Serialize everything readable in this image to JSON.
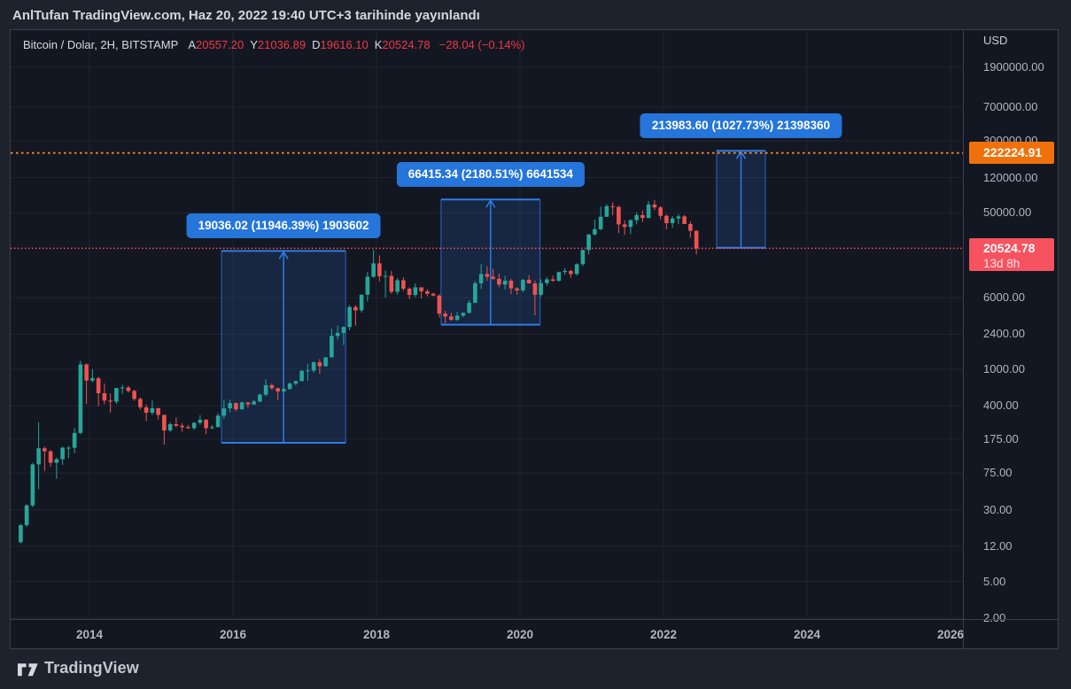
{
  "attribution": {
    "text": "AnlTufan TradingView.com, Haz 20, 2022 19:40 UTC+3 tarihinde yayınlandı"
  },
  "legend": {
    "symbol_title": "Bitcoin / Dolar, 2H, BITSTAMP",
    "ohlc": [
      {
        "label": "A",
        "value": "20557.20"
      },
      {
        "label": "Y",
        "value": "21036.89"
      },
      {
        "label": "D",
        "value": "19616.10"
      },
      {
        "label": "K",
        "value": "20524.78"
      }
    ],
    "change": "−28.04 (−0.14%)"
  },
  "price_axis": {
    "unit": "USD",
    "ticks": [
      "1900000.00",
      "700000.00",
      "300000.00",
      "120000.00",
      "50000.00",
      "6000.00",
      "2400.00",
      "1000.00",
      "400.00",
      "175.00",
      "75.00",
      "30.00",
      "12.00",
      "5.00",
      "2.00"
    ],
    "tick_values": [
      1900000,
      700000,
      300000,
      120000,
      50000,
      6000,
      2400,
      1000,
      400,
      175,
      75,
      30,
      12,
      5,
      2
    ],
    "badges": [
      {
        "text": "222224.91",
        "value": 222224.91,
        "color": "#f0710c"
      },
      {
        "text": "20524.78",
        "sub": "13d 8h",
        "value": 20524.78,
        "color": "#f7525f"
      }
    ]
  },
  "time_axis": {
    "ticks": [
      2014,
      2016,
      2018,
      2020,
      2022,
      2024,
      2026
    ]
  },
  "footer": {
    "logo_text": "TradingView"
  },
  "chart_data": {
    "type": "candlestick",
    "symbol": "Bitcoin / Dolar",
    "exchange": "BITSTAMP",
    "timeframe": "2H",
    "scale": "log",
    "ylabel": "USD",
    "x_range_years": [
      2013.0,
      2026.5
    ],
    "y_ticks": [
      1900000,
      700000,
      300000,
      120000,
      50000,
      6000,
      2400,
      1000,
      400,
      175,
      75,
      30,
      12,
      5,
      2
    ],
    "colors": {
      "up": "#26a69a",
      "down": "#ef5350",
      "accent_blue": "#2e7ce6",
      "box_fill": "rgba(46,110,212,0.18)",
      "grid": "#1f2431",
      "line_red": "#f7525f",
      "line_orange": "#f7821b"
    },
    "start_year": 2013,
    "interval_months": 1,
    "candles": [
      [
        13.3,
        21,
        13,
        20.4
      ],
      [
        20.4,
        34.5,
        19.5,
        33.4
      ],
      [
        33.4,
        97,
        32,
        93
      ],
      [
        93,
        266,
        50,
        139
      ],
      [
        139,
        145,
        79,
        129
      ],
      [
        129,
        133,
        88,
        97
      ],
      [
        97,
        110,
        65,
        106
      ],
      [
        106,
        145,
        92,
        141
      ],
      [
        141,
        147,
        109,
        141
      ],
      [
        141,
        232,
        123,
        204
      ],
      [
        204,
        1240,
        198,
        1130
      ],
      [
        1130,
        1155,
        420,
        754
      ],
      [
        754,
        1000,
        720,
        800
      ],
      [
        800,
        830,
        400,
        550
      ],
      [
        550,
        700,
        420,
        458
      ],
      [
        458,
        545,
        340,
        446
      ],
      [
        446,
        630,
        420,
        627
      ],
      [
        627,
        680,
        540,
        635
      ],
      [
        635,
        660,
        560,
        583
      ],
      [
        583,
        600,
        455,
        477
      ],
      [
        477,
        495,
        365,
        387
      ],
      [
        387,
        415,
        275,
        338
      ],
      [
        338,
        460,
        320,
        378
      ],
      [
        378,
        384,
        285,
        320
      ],
      [
        320,
        322,
        152,
        217
      ],
      [
        217,
        265,
        210,
        254
      ],
      [
        254,
        300,
        236,
        244
      ],
      [
        244,
        260,
        210,
        236
      ],
      [
        236,
        248,
        225,
        230
      ],
      [
        230,
        268,
        220,
        263
      ],
      [
        263,
        318,
        250,
        284
      ],
      [
        284,
        288,
        198,
        230
      ],
      [
        230,
        248,
        223,
        236
      ],
      [
        236,
        334,
        235,
        314
      ],
      [
        314,
        465,
        290,
        377
      ],
      [
        377,
        470,
        340,
        430
      ],
      [
        430,
        436,
        350,
        368
      ],
      [
        368,
        448,
        365,
        437
      ],
      [
        437,
        440,
        383,
        416
      ],
      [
        416,
        470,
        410,
        448
      ],
      [
        448,
        545,
        438,
        531
      ],
      [
        531,
        780,
        510,
        673
      ],
      [
        673,
        705,
        600,
        624
      ],
      [
        624,
        630,
        465,
        575
      ],
      [
        575,
        628,
        565,
        610
      ],
      [
        610,
        720,
        600,
        700
      ],
      [
        700,
        755,
        670,
        745
      ],
      [
        745,
        980,
        740,
        963
      ],
      [
        963,
        1150,
        750,
        970
      ],
      [
        970,
        1220,
        920,
        1190
      ],
      [
        1190,
        1290,
        890,
        1080
      ],
      [
        1080,
        1350,
        1060,
        1350
      ],
      [
        1350,
        2760,
        1340,
        2300
      ],
      [
        2300,
        3000,
        2100,
        2480
      ],
      [
        2480,
        2930,
        1830,
        2875
      ],
      [
        2875,
        4980,
        2640,
        4735
      ],
      [
        4735,
        4950,
        2970,
        4360
      ],
      [
        4360,
        6470,
        4110,
        6450
      ],
      [
        6450,
        11400,
        5420,
        10100
      ],
      [
        10100,
        19800,
        9800,
        14100
      ],
      [
        14100,
        17200,
        9000,
        10200
      ],
      [
        10200,
        11790,
        6000,
        10300
      ],
      [
        10300,
        11650,
        6600,
        6930
      ],
      [
        6930,
        9760,
        6430,
        9240
      ],
      [
        9240,
        9990,
        7070,
        7490
      ],
      [
        7490,
        7750,
        5780,
        6400
      ],
      [
        6400,
        8500,
        6070,
        7750
      ],
      [
        7750,
        7760,
        5880,
        7010
      ],
      [
        7010,
        7410,
        6190,
        6600
      ],
      [
        6600,
        6760,
        6200,
        6300
      ],
      [
        6300,
        6540,
        3650,
        4020
      ],
      [
        4020,
        4300,
        3150,
        3740
      ],
      [
        3740,
        4110,
        3350,
        3440
      ],
      [
        3440,
        4190,
        3350,
        3820
      ],
      [
        3820,
        4140,
        3670,
        4100
      ],
      [
        4100,
        5620,
        4030,
        5270
      ],
      [
        5270,
        9070,
        5210,
        8560
      ],
      [
        8560,
        13880,
        7450,
        10800
      ],
      [
        10800,
        13150,
        9100,
        10090
      ],
      [
        10090,
        12320,
        9350,
        9600
      ],
      [
        9600,
        10900,
        7750,
        8300
      ],
      [
        8300,
        10350,
        7300,
        9150
      ],
      [
        9150,
        9550,
        6520,
        7550
      ],
      [
        7550,
        7750,
        6430,
        7190
      ],
      [
        7190,
        9570,
        6850,
        9350
      ],
      [
        9350,
        10500,
        8520,
        8540
      ],
      [
        8540,
        9200,
        3850,
        6440
      ],
      [
        6440,
        9460,
        6150,
        8630
      ],
      [
        8630,
        9990,
        8100,
        9450
      ],
      [
        9450,
        10380,
        8830,
        9140
      ],
      [
        9140,
        11440,
        8900,
        11350
      ],
      [
        11350,
        12480,
        10550,
        11650
      ],
      [
        11650,
        12050,
        9840,
        10790
      ],
      [
        10790,
        14100,
        10380,
        13800
      ],
      [
        13800,
        19870,
        13200,
        19700
      ],
      [
        19700,
        29300,
        17580,
        28990
      ],
      [
        28990,
        41950,
        28130,
        33100
      ],
      [
        33100,
        58350,
        32320,
        45200
      ],
      [
        45200,
        61780,
        44950,
        58800
      ],
      [
        58800,
        64850,
        46930,
        57750
      ],
      [
        57750,
        59500,
        30000,
        37300
      ],
      [
        37300,
        41300,
        28800,
        35000
      ],
      [
        35000,
        42240,
        29300,
        41500
      ],
      [
        41500,
        50500,
        37330,
        47100
      ],
      [
        47100,
        52950,
        39600,
        43800
      ],
      [
        43800,
        66950,
        43280,
        61300
      ],
      [
        61300,
        69000,
        53260,
        57000
      ],
      [
        57000,
        59050,
        42330,
        46200
      ],
      [
        46200,
        47990,
        32950,
        38480
      ],
      [
        38480,
        45820,
        34300,
        43190
      ],
      [
        43190,
        48200,
        37550,
        45540
      ],
      [
        45540,
        47450,
        37580,
        37650
      ],
      [
        37650,
        40020,
        26700,
        31790
      ],
      [
        31790,
        31990,
        17600,
        20524.78
      ]
    ],
    "price_lines": [
      {
        "value": 222224.91,
        "color": "#f7821b",
        "width": 2,
        "dash": "2.5 3.5",
        "label": "222224.91"
      },
      {
        "value": 20524.78,
        "color": "#f7525f",
        "width": 1.5,
        "dash": "1.5 2.5",
        "label": "20524.78",
        "sublabel": "13d 8h"
      }
    ],
    "measurements": [
      {
        "label": "19036.02 (11946.39%) 1903602",
        "value": 19036.02,
        "percent": 11946.39,
        "volume": "1903602",
        "t_start": 2015.84,
        "t_end": 2017.57,
        "price_start": 159.35,
        "price_end": 19195.37
      },
      {
        "label": "66415.34 (2180.51%) 6641534",
        "value": 66415.34,
        "percent": 2180.51,
        "volume": "6641534",
        "t_start": 2018.9,
        "t_end": 2020.28,
        "price_start": 3046.32,
        "price_end": 69461.66
      },
      {
        "label": "213983.60 (1027.73%) 21398360",
        "value": 213983.6,
        "percent": 1027.73,
        "volume": "21398360",
        "t_start": 2022.74,
        "t_end": 2023.42,
        "price_start": 20821.0,
        "price_end": 234804.6
      }
    ]
  }
}
